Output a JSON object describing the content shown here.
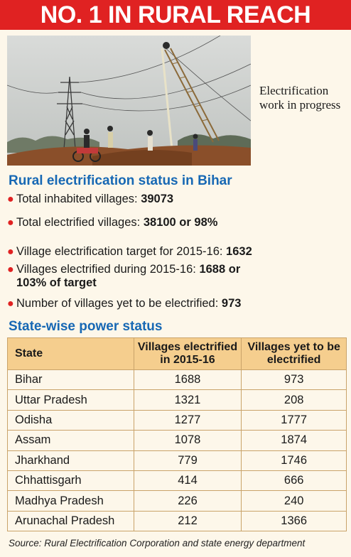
{
  "banner": {
    "title": "NO. 1 IN RURAL REACH"
  },
  "photo": {
    "caption": "Electrification work in progress"
  },
  "status": {
    "heading": "Rural electrification status in Bihar",
    "items": [
      {
        "label": "Total inhabited villages: ",
        "value": "39073"
      },
      {
        "label": "Total electrified villages: ",
        "value": "38100 or 98%"
      },
      {
        "label": "Village electrification target for 2015-16: ",
        "value": "1632"
      },
      {
        "label": "Villages electrified during 2015-16: ",
        "value": "1688 or",
        "value2": "103% of target"
      },
      {
        "label": "Number of villages yet to be electrified: ",
        "value": "973"
      }
    ]
  },
  "table": {
    "heading": "State-wise power status",
    "columns": [
      "State",
      "Villages electrified in 2015-16",
      "Villages yet to be electrified"
    ],
    "rows": [
      [
        "Bihar",
        "1688",
        "973"
      ],
      [
        "Uttar Pradesh",
        "1321",
        "208"
      ],
      [
        "Odisha",
        "1277",
        "1777"
      ],
      [
        "Assam",
        "1078",
        "1874"
      ],
      [
        "Jharkhand",
        "779",
        "1746"
      ],
      [
        "Chhattisgarh",
        "414",
        "666"
      ],
      [
        "Madhya Pradesh",
        "226",
        "240"
      ],
      [
        "Arunachal Pradesh",
        "212",
        "1366"
      ]
    ]
  },
  "source": "Source: Rural Electrification Corporation and state energy department",
  "colors": {
    "banner": "#e02222",
    "heading": "#1768b4",
    "table_header": "#f5ce8e",
    "background": "#fdf7ea"
  }
}
